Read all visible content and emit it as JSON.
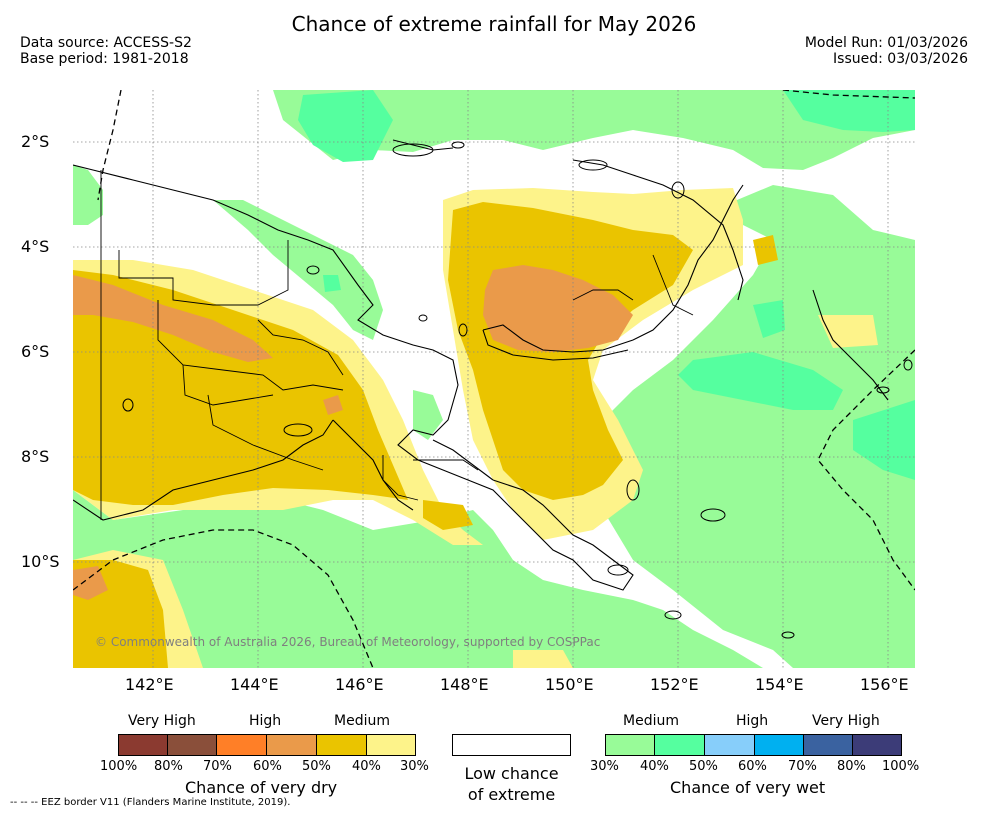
{
  "header": {
    "title": "Chance of extreme rainfall for May 2026",
    "data_source": "Data source: ACCESS-S2",
    "base_period": "Base period: 1981-2018",
    "model_run": "Model Run: 01/03/2026",
    "issued": "Issued: 03/03/2026"
  },
  "map": {
    "latitude_labels": [
      "2°S",
      "4°S",
      "6°S",
      "8°S",
      "10°S"
    ],
    "longitude_labels": [
      "142°E",
      "144°E",
      "146°E",
      "148°E",
      "150°E",
      "152°E",
      "154°E",
      "156°E"
    ],
    "copyright": "© Commonwealth of Australia 2026, Bureau of Meteorology, supported by COSPPac",
    "colors": {
      "ocean_grid": "#888888",
      "coast": "#000000"
    }
  },
  "legend": {
    "dry": {
      "levels": [
        "Very High",
        "High",
        "Medium"
      ],
      "percents": [
        "100%",
        "80%",
        "70%",
        "60%",
        "50%",
        "40%",
        "30%"
      ],
      "colors": [
        "#8b3a30",
        "#8a4f3a",
        "#ff7f27",
        "#ea9a4a",
        "#eac400",
        "#fdf38a"
      ],
      "title": "Chance of very dry"
    },
    "low": {
      "title_line1": "Low chance",
      "title_line2": "of extreme",
      "color": "#ffffff"
    },
    "wet": {
      "levels": [
        "Medium",
        "High",
        "Very High"
      ],
      "percents": [
        "30%",
        "40%",
        "50%",
        "60%",
        "70%",
        "80%",
        "100%"
      ],
      "colors": [
        "#98fb98",
        "#55ff9f",
        "#87cefa",
        "#00b0f0",
        "#3a62a0",
        "#3c3c78"
      ],
      "title": "Chance of very wet"
    }
  },
  "footer": {
    "eez_note": "--  --  -- EEZ border V11 (Flanders Marine Institute, 2019)."
  }
}
